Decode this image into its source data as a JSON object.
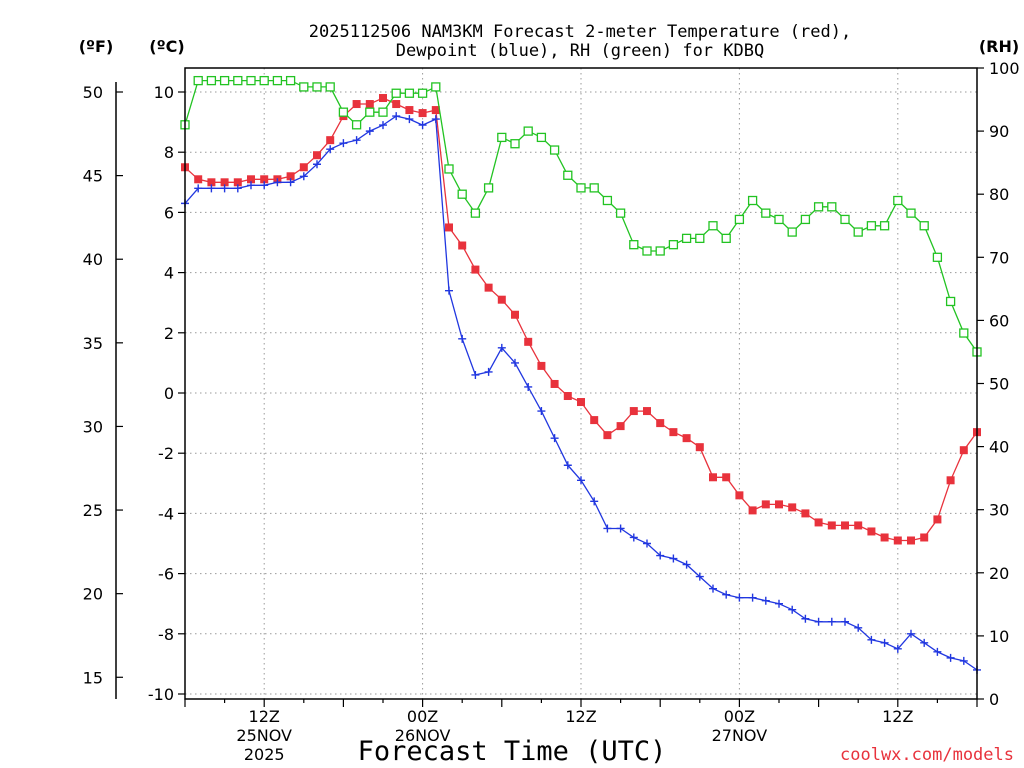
{
  "chart_data": {
    "type": "line",
    "title_line1": "2025112506 NAM3KM Forecast 2-meter Temperature (red),",
    "title_line2": "Dewpoint (blue), RH (green) for KDBQ",
    "xlabel": "Forecast Time (UTC)",
    "unit_left_outer": "(ºF)",
    "unit_left_inner": "(ºC)",
    "unit_right": "(RH)",
    "credit": "coolwx.com/models",
    "x_range_hours": [
      0,
      60
    ],
    "y_celsius_range": [
      -10.0,
      10.0
    ],
    "y_rh_range": [
      0,
      100
    ],
    "y_fahrenheit_range": [
      14.0,
      50.0
    ],
    "x_ticks": [
      {
        "hour": 6,
        "line1": "12Z",
        "line2": "25NOV",
        "line3": "2025"
      },
      {
        "hour": 18,
        "line1": "00Z",
        "line2": "26NOV",
        "line3": ""
      },
      {
        "hour": 30,
        "line1": "12Z",
        "line2": "",
        "line3": ""
      },
      {
        "hour": 42,
        "line1": "00Z",
        "line2": "27NOV",
        "line3": ""
      },
      {
        "hour": 54,
        "line1": "12Z",
        "line2": "",
        "line3": ""
      }
    ],
    "y_celsius_ticks": [
      "-10",
      "-8",
      "-6",
      "-4",
      "-2",
      "0",
      "2",
      "4",
      "6",
      "8",
      "10"
    ],
    "y_fahrenheit_ticks": [
      "15",
      "20",
      "25",
      "30",
      "35",
      "40",
      "45",
      "50"
    ],
    "y_rh_ticks": [
      "0",
      "10",
      "20",
      "30",
      "40",
      "50",
      "60",
      "70",
      "80",
      "90",
      "100"
    ],
    "series": [
      {
        "name": "Temperature",
        "unit": "C",
        "color": "#e8323c",
        "marker": "filled-square",
        "values": [
          7.5,
          7.1,
          7.0,
          7.0,
          7.0,
          7.1,
          7.1,
          7.1,
          7.2,
          7.5,
          7.9,
          8.4,
          9.2,
          9.6,
          9.6,
          9.8,
          9.6,
          9.4,
          9.3,
          9.4,
          5.5,
          4.9,
          4.1,
          3.5,
          3.1,
          2.6,
          1.7,
          0.9,
          0.3,
          -0.1,
          -0.3,
          -0.9,
          -1.4,
          -1.1,
          -0.6,
          -0.6,
          -1.0,
          -1.3,
          -1.5,
          -1.8,
          -2.8,
          -2.8,
          -3.4,
          -3.9,
          -3.7,
          -3.7,
          -3.8,
          -4.0,
          -4.3,
          -4.4,
          -4.4,
          -4.4,
          -4.6,
          -4.8,
          -4.9,
          -4.9,
          -4.8,
          -4.2,
          -2.9,
          -1.9,
          -1.3
        ]
      },
      {
        "name": "Dewpoint",
        "unit": "C",
        "color": "#2137e0",
        "marker": "plus",
        "values": [
          6.3,
          6.8,
          6.8,
          6.8,
          6.8,
          6.9,
          6.9,
          7.0,
          7.0,
          7.2,
          7.6,
          8.1,
          8.3,
          8.4,
          8.7,
          8.9,
          9.2,
          9.1,
          8.9,
          9.1,
          3.4,
          1.8,
          0.6,
          0.7,
          1.5,
          1.0,
          0.2,
          -0.6,
          -1.5,
          -2.4,
          -2.9,
          -3.6,
          -4.5,
          -4.5,
          -4.8,
          -5.0,
          -5.4,
          -5.5,
          -5.7,
          -6.1,
          -6.5,
          -6.7,
          -6.8,
          -6.8,
          -6.9,
          -7.0,
          -7.2,
          -7.5,
          -7.6,
          -7.6,
          -7.6,
          -7.8,
          -8.2,
          -8.3,
          -8.5,
          -8.0,
          -8.3,
          -8.6,
          -8.8,
          -8.9,
          -9.2
        ]
      },
      {
        "name": "RH",
        "unit": "%",
        "color": "#22c322",
        "marker": "open-square",
        "values": [
          91,
          98,
          98,
          98,
          98,
          98,
          98,
          98,
          98,
          97,
          97,
          97,
          93,
          91,
          93,
          93,
          96,
          96,
          96,
          97,
          84,
          80,
          77,
          81,
          89,
          88,
          90,
          89,
          87,
          83,
          81,
          81,
          79,
          77,
          72,
          71,
          71,
          72,
          73,
          73,
          75,
          73,
          76,
          79,
          77,
          76,
          74,
          76,
          78,
          78,
          76,
          74,
          75,
          75,
          79,
          77,
          75,
          70,
          63,
          58,
          55
        ]
      }
    ]
  }
}
